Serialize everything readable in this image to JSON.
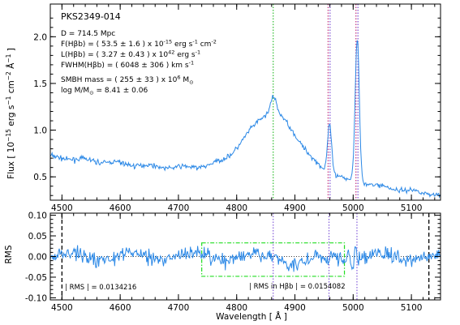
{
  "chart_data": [
    {
      "type": "line",
      "object_name": "PKS2349-014",
      "info_lines": [
        {
          "label": "D",
          "text": "D =  714.5 Mpc"
        },
        {
          "label": "F(Hβb)",
          "text": "F(Hβb) = (   53.5 ±    1.6 ) x 10",
          "exp": "-15",
          "tail": " erg s",
          "exp2": "-1",
          "tail2": " cm",
          "exp3": "-2"
        },
        {
          "label": "L(Hβb)",
          "text": "L(Hβb) = (   3.27 ±  0.43 ) x 10",
          "exp": "42",
          "tail": " erg s",
          "exp2": "-1"
        },
        {
          "label": "FWHM(Hβb)",
          "text": "FWHM(Hβb) = (  6048 ±   306 ) km s",
          "exp": "-1"
        },
        {
          "label": "SMBH mass",
          "text": "SMBH mass = (   255 ±   33 ) x 10",
          "exp": "6",
          "tail": " M",
          "sub": "⊙"
        },
        {
          "label": "log M/M",
          "text": "log M/M",
          "sub": "⊙",
          "tail": " =    8.41 ±  0.06"
        }
      ],
      "ylabel": "Flux [ 10⁻¹⁵ erg s⁻¹ cm⁻² Å⁻¹ ]",
      "xlim": [
        4480,
        5150
      ],
      "ylim": [
        0.25,
        2.35
      ],
      "x_ticks": [
        4500,
        4600,
        4700,
        4800,
        4900,
        5000,
        5100
      ],
      "x_tick_labels": [
        "4500",
        "4600",
        "4700",
        "4800",
        "4900",
        "5000",
        "5100"
      ],
      "y_ticks": [
        0.5,
        1.0,
        1.5,
        2.0
      ],
      "y_tick_labels": [
        "0.5",
        "1.0",
        "1.5",
        "2.0"
      ],
      "vlines": [
        {
          "x": 4862.7,
          "color": "#2ebd2e"
        },
        {
          "x": 4957.0,
          "color": "#c0307f"
        },
        {
          "x": 4960.3,
          "color": "#7a4fd6"
        },
        {
          "x": 5004.8,
          "color": "#c0307f"
        },
        {
          "x": 5008.2,
          "color": "#7a4fd6"
        }
      ],
      "series": [
        {
          "role": "observed",
          "color": "#2b88e6"
        },
        {
          "role": "model",
          "color": "#000000"
        },
        {
          "role": "broad-hb",
          "color": "#33dd33"
        },
        {
          "role": "powerlaw",
          "color": "#000000",
          "style": "dashed"
        },
        {
          "role": "narrow-lines",
          "color": "#7a1a4f",
          "style": "dashdot"
        },
        {
          "role": "fe-comp-1",
          "color": "#dd2222",
          "style": "dashdot"
        },
        {
          "role": "fe-comp-2",
          "color": "#ee66ee",
          "style": "dashdot"
        },
        {
          "role": "fe-comp-3",
          "color": "#00bbbb",
          "style": "dashdot"
        },
        {
          "role": "host",
          "color": "#ffaa00",
          "style": "dashdot"
        }
      ]
    },
    {
      "type": "line",
      "ylabel": "RMS",
      "xlabel": "Wavelength [ Å ]",
      "xlim": [
        4480,
        5150
      ],
      "ylim": [
        -0.105,
        0.105
      ],
      "x_ticks": [
        4500,
        4600,
        4700,
        4800,
        4900,
        5000,
        5100
      ],
      "x_tick_labels": [
        "4500",
        "4600",
        "4700",
        "4800",
        "4900",
        "5000",
        "5100"
      ],
      "y_ticks": [
        -0.1,
        -0.05,
        0.0,
        0.05,
        0.1
      ],
      "y_tick_labels": [
        "-0.10",
        "-0.05",
        "0.00",
        "0.05",
        "0.10"
      ],
      "rms_label": "| RMS |  = 0.0134216",
      "rms_hb_label": "| RMS in Hβb |  = 0.0154082",
      "window": {
        "x0": 4740,
        "x1": 4985,
        "y0": -0.048,
        "y1": 0.033,
        "color": "#22dd22"
      },
      "dashed_edges": [
        4500,
        5130
      ],
      "vlines": [
        {
          "x": 4862.7,
          "color": "#7a4fd6"
        },
        {
          "x": 4958.5,
          "color": "#7a4fd6"
        },
        {
          "x": 5006.5,
          "color": "#7a4fd6"
        }
      ],
      "residual_color": "#2b88e6"
    }
  ]
}
